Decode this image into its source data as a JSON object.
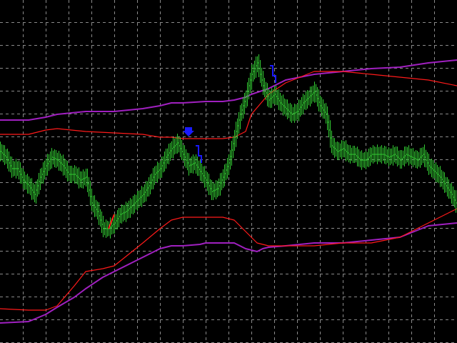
{
  "chart_data": {
    "type": "line",
    "title": "",
    "xlabel": "",
    "ylabel": "",
    "xlim": [
      0,
      160
    ],
    "ylim": [
      0,
      120
    ],
    "grid": true,
    "colors": {
      "background": "#000000",
      "grid": "#8a8a8a",
      "price_bars": "#33cc33",
      "upper_band_red": "#ff1a1a",
      "upper_band_purple": "#a020c0",
      "lower_band_red": "#ff1a1a",
      "lower_band_purple": "#a020c0",
      "signal_marks": "#1a1aff",
      "red_segment": "#ff1a1a"
    },
    "price": {
      "name": "",
      "x": [
        0,
        2,
        4,
        6,
        8,
        10,
        12,
        14,
        16,
        18,
        20,
        22,
        24,
        26,
        28,
        30,
        32,
        34,
        36,
        38,
        40,
        42,
        44,
        46,
        48,
        50,
        52,
        54,
        56,
        58,
        60,
        62,
        64,
        66,
        68,
        70,
        72,
        74,
        76,
        78,
        80,
        82,
        84,
        86,
        88,
        90,
        92,
        94,
        96,
        98,
        100,
        102,
        104,
        106,
        108,
        110,
        112,
        114,
        116,
        118,
        120,
        122,
        124,
        126,
        128,
        130,
        132,
        134,
        136,
        138,
        140,
        142,
        144,
        146,
        148,
        150,
        152,
        154,
        156,
        158,
        160
      ],
      "y": [
        67,
        65,
        61,
        61,
        57,
        55,
        52,
        58,
        62,
        65,
        64,
        62,
        59,
        59,
        57,
        58,
        49,
        46,
        40,
        40,
        42,
        45,
        46,
        48,
        50,
        52,
        55,
        59,
        61,
        65,
        68,
        70,
        66,
        62,
        63,
        60,
        57,
        53,
        54,
        58,
        63,
        72,
        80,
        86,
        94,
        98,
        90,
        85,
        87,
        84,
        82,
        80,
        81,
        84,
        86,
        88,
        83,
        80,
        69,
        67,
        68,
        66,
        66,
        64,
        64,
        66,
        66,
        66,
        65,
        66,
        64,
        66,
        65,
        64,
        66,
        62,
        60,
        58,
        55,
        52,
        48
      ]
    },
    "upper_band_red": {
      "name": "",
      "x": [
        0,
        10,
        16,
        20,
        30,
        40,
        50,
        56,
        60,
        64,
        72,
        78,
        82,
        86,
        88,
        94,
        100,
        110,
        120,
        130,
        140,
        150,
        160
      ],
      "y": [
        73,
        73,
        74.5,
        75,
        74,
        73.5,
        73,
        72,
        72,
        71.5,
        71.5,
        71.5,
        72,
        74,
        80,
        87,
        91,
        95,
        95,
        94,
        93,
        92,
        90
      ]
    },
    "upper_band_purple": {
      "name": "",
      "x": [
        0,
        10,
        16,
        20,
        30,
        40,
        50,
        56,
        60,
        64,
        72,
        78,
        82,
        86,
        88,
        94,
        100,
        110,
        120,
        130,
        140,
        150,
        160
      ],
      "y": [
        78,
        78,
        79,
        80,
        81,
        81,
        82,
        83,
        84,
        84,
        84.5,
        84.5,
        85,
        86,
        87,
        89,
        92,
        94,
        95,
        96,
        96.5,
        98,
        99
      ]
    },
    "lower_band_red": {
      "name": "",
      "x": [
        0,
        10,
        16,
        20,
        26,
        30,
        36,
        40,
        50,
        56,
        60,
        64,
        70,
        72,
        78,
        82,
        86,
        90,
        92,
        94,
        100,
        110,
        120,
        130,
        140,
        150,
        160
      ],
      "y": [
        12,
        11.5,
        11.5,
        13,
        20,
        25,
        26,
        27,
        35,
        40,
        43,
        44,
        44,
        44,
        44,
        43,
        39,
        35,
        34.5,
        34,
        34,
        34,
        35,
        35,
        37,
        42,
        47
      ]
    },
    "lower_band_purple": {
      "name": "",
      "x": [
        0,
        10,
        16,
        20,
        26,
        30,
        36,
        40,
        50,
        56,
        60,
        64,
        70,
        72,
        78,
        82,
        86,
        90,
        92,
        94,
        100,
        110,
        120,
        130,
        140,
        150,
        160
      ],
      "y": [
        7,
        7.5,
        10,
        12.5,
        16,
        19,
        23,
        25,
        30,
        33,
        34,
        34,
        34.5,
        35,
        35,
        35,
        33,
        32,
        33,
        33.5,
        34,
        35,
        35,
        36,
        37,
        41,
        42
      ]
    },
    "signal_marks": {
      "name": "",
      "x": [
        66,
        70,
        96
      ],
      "y": [
        73.5,
        64,
        92
      ]
    },
    "red_segment": {
      "name": "",
      "x": [
        38,
        40
      ],
      "y": [
        40,
        45
      ]
    }
  }
}
